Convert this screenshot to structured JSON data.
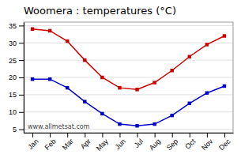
{
  "chart_data": {
    "type": "line",
    "title": "Woomera : temperatures (°C)",
    "categories": [
      "Jan",
      "Feb",
      "Mar",
      "Apr",
      "May",
      "Jun",
      "Jul",
      "Aug",
      "Sep",
      "Oct",
      "Nov",
      "Dec"
    ],
    "series": [
      {
        "color": "#cc0000",
        "marker": "square",
        "values": [
          34,
          33.5,
          30.5,
          25,
          20,
          17,
          16.5,
          18.5,
          22,
          26,
          29.5,
          32
        ]
      },
      {
        "color": "#0000cc",
        "marker": "square",
        "values": [
          19.5,
          19.5,
          17,
          13,
          9.5,
          6.5,
          6,
          6.5,
          9,
          12.5,
          15.5,
          17.5
        ]
      }
    ],
    "ylim": [
      4,
      36
    ],
    "yticks": [
      5,
      10,
      15,
      20,
      25,
      30,
      35
    ],
    "grid": true,
    "annotations": [
      "www.allmetsat.com"
    ]
  }
}
